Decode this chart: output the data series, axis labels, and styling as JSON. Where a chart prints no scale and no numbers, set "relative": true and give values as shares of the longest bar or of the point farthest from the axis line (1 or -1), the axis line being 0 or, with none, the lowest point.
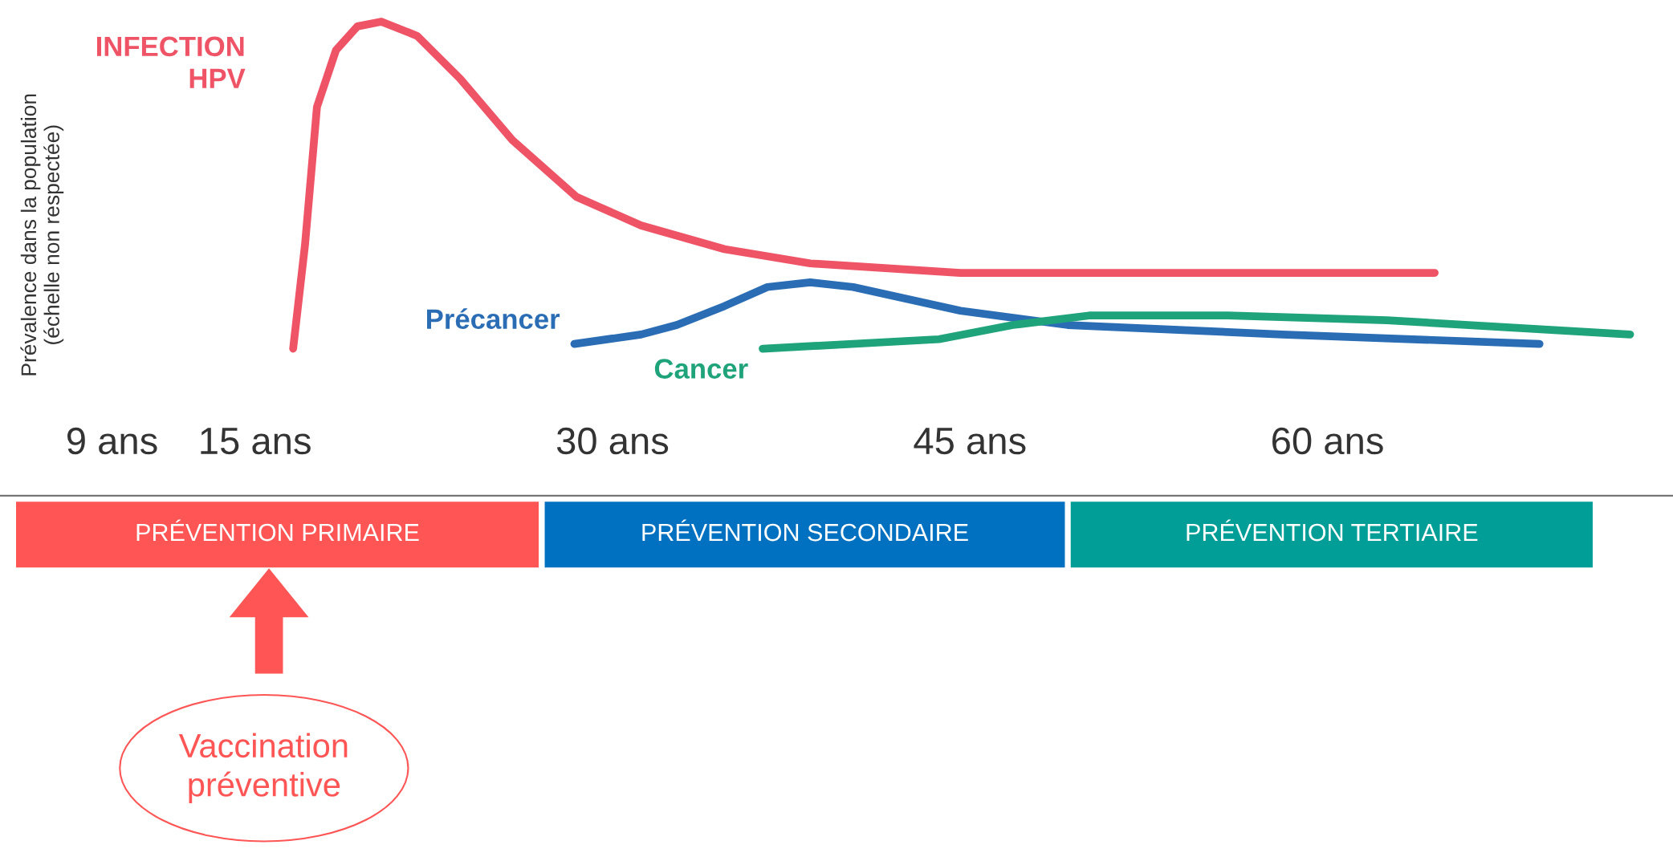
{
  "chart_data": {
    "type": "line",
    "relative": true,
    "ylabel": "Prévalence dans la population\n(échelle non respectée)",
    "xlim": [
      4.3,
      74.5
    ],
    "xticks": [
      {
        "value": 9,
        "label": "9 ans"
      },
      {
        "value": 15,
        "label": "15 ans"
      },
      {
        "value": 30,
        "label": "30 ans"
      },
      {
        "value": 45,
        "label": "45 ans"
      },
      {
        "value": 60,
        "label": "60 ans"
      }
    ],
    "series": [
      {
        "name": "INFECTION\nHPV",
        "color": "#ef5366",
        "x": [
          16.6,
          17.1,
          17.6,
          18.4,
          19.3,
          20.3,
          21.8,
          23.6,
          25.8,
          28.5,
          31.2,
          34.7,
          38.3,
          44.6,
          51.3,
          64.5
        ],
        "values": [
          0.31,
          0.53,
          0.82,
          0.94,
          0.99,
          1.0,
          0.97,
          0.88,
          0.75,
          0.63,
          0.57,
          0.52,
          0.49,
          0.47,
          0.47,
          0.47
        ]
      },
      {
        "name": "Précancer",
        "color": "#2a6db5",
        "x": [
          28.4,
          31.2,
          32.7,
          34.7,
          36.5,
          38.3,
          40.1,
          44.6,
          49.1,
          58.1,
          68.9
        ],
        "values": [
          0.32,
          0.34,
          0.36,
          0.4,
          0.44,
          0.45,
          0.44,
          0.39,
          0.36,
          0.34,
          0.32
        ]
      },
      {
        "name": "Cancer",
        "color": "#1fa37a",
        "x": [
          36.3,
          43.7,
          46.8,
          50.0,
          55.8,
          62.5,
          72.7
        ],
        "values": [
          0.31,
          0.33,
          0.36,
          0.38,
          0.38,
          0.37,
          0.34
        ]
      }
    ],
    "annotations": [
      "PRÉVENTION PRIMAIRE",
      "PRÉVENTION SECONDAIRE",
      "PRÉVENTION TERTIAIRE",
      "Vaccination\npréventive"
    ],
    "grid": false,
    "legend": false,
    "line_style": "solid",
    "marker": "none"
  }
}
